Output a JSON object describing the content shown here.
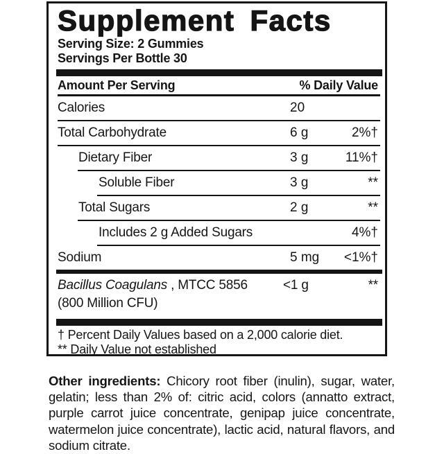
{
  "panel": {
    "title": "Supplement Facts",
    "serving_size": "Serving Size: 2 Gummies",
    "servings_per_bottle": "Servings Per Bottle 30",
    "header": {
      "left": "Amount Per Serving",
      "right": "% Daily Value"
    },
    "rows": [
      {
        "name": "Calories",
        "amount": "20",
        "daily_value": ""
      },
      {
        "name": "Total Carbohydrate",
        "amount": "6 g",
        "daily_value": "2%†"
      },
      {
        "name": "Dietary Fiber",
        "amount": "3 g",
        "daily_value": "11%†"
      },
      {
        "name": "Soluble Fiber",
        "amount": "3 g",
        "daily_value": "**"
      },
      {
        "name": "Total Sugars",
        "amount": "2 g",
        "daily_value": "**"
      },
      {
        "name": "Includes 2 g Added Sugars",
        "amount": "",
        "daily_value": "4%†"
      },
      {
        "name": "Sodium",
        "amount": "5 mg",
        "daily_value": "<1%†"
      }
    ],
    "probiotic": {
      "name_italic": "Bacillus Coagulans",
      "name_suffix": " , MTCC 5856",
      "name_line2": "(800 Million CFU)",
      "amount": "<1 g",
      "daily_value": "**"
    },
    "footnotes": [
      "† Percent Daily Values based on a 2,000 calorie diet.",
      "** Daily Value not established"
    ]
  },
  "ingredients": {
    "label": "Other ingredients:",
    "text": "Chicory root fiber (inulin), sugar, water, gelatin; less than 2% of: citric acid, colors (annatto extract, purple carrot juice concentrate, genipap juice concentrate, watermelon juice concentrate), lactic acid, natural flavors, and sodium citrate."
  },
  "colors": {
    "ink": "#151515",
    "background": "#ffffff"
  }
}
